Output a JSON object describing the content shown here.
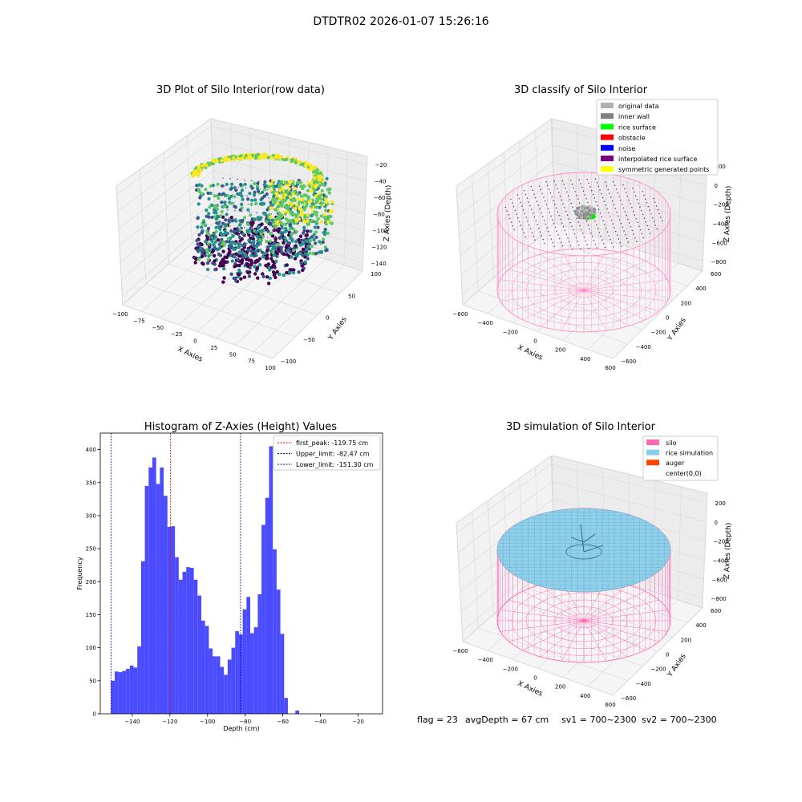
{
  "figure": {
    "suptitle": "DTDTR02 2026-01-07 15:26:16",
    "footer": {
      "flag": "flag = 23",
      "avg_depth": "avgDepth = 67 cm",
      "sv1": "sv1 = 700~2300",
      "sv2": "sv2 = 700~2300"
    }
  },
  "chart_data": [
    {
      "id": "raw",
      "type": "scatter",
      "title": "3D Plot of Silo Interior(row data)",
      "xlabel": "X Axies",
      "ylabel": "Y Axies",
      "zlabel": "Z Axies (Depth)",
      "x_ticks": [
        "−100",
        "−75",
        "−50",
        "−25",
        "0",
        "25",
        "50",
        "75",
        "100"
      ],
      "y_ticks": [
        "−100",
        "−50",
        "0",
        "50",
        "100"
      ],
      "z_ticks": [
        "−20",
        "−40",
        "−60",
        "−80",
        "−100",
        "−120",
        "−140"
      ],
      "xlim": [
        -100,
        100
      ],
      "ylim": [
        -100,
        100
      ],
      "zlim": [
        -150,
        -10
      ],
      "colormap": [
        "#440154",
        "#3b528b",
        "#21918c",
        "#5ec962",
        "#fde725"
      ]
    },
    {
      "id": "classify",
      "type": "scatter",
      "title": "3D classify of Silo Interior",
      "xlabel": "X Axies",
      "ylabel": "Y Axies",
      "zlabel": "Z Axies (Depth)",
      "x_ticks": [
        "−600",
        "−400",
        "−200",
        "0",
        "200",
        "400",
        "600"
      ],
      "y_ticks": [
        "−600",
        "−400",
        "−200",
        "0",
        "200",
        "400",
        "600"
      ],
      "z_ticks": [
        "200",
        "0",
        "−200",
        "−400",
        "−600",
        "−800"
      ],
      "legend_position": "top-right",
      "legend": [
        {
          "label": "original data",
          "color": "#b0b0b0"
        },
        {
          "label": "inner wall",
          "color": "#808080"
        },
        {
          "label": "rice surface",
          "color": "#00ff00"
        },
        {
          "label": "obstacle",
          "color": "#ff0000"
        },
        {
          "label": "noise",
          "color": "#0000ff"
        },
        {
          "label": "interpolated rice surface",
          "color": "#800080"
        },
        {
          "label": "symmetric generated points",
          "color": "#ffff00"
        }
      ],
      "silo_color": "#ff8fc8"
    },
    {
      "id": "histogram",
      "type": "bar",
      "title": "Histogram of Z-Axies (Height) Values",
      "xlabel": "Depth (cm)",
      "ylabel": "Frequency",
      "xlim": [
        -157,
        -7
      ],
      "ylim": [
        0,
        425
      ],
      "x_ticks": [
        -140,
        -120,
        -100,
        -80,
        -60,
        -40,
        -20
      ],
      "x_tick_labels": [
        "−140",
        "−120",
        "−100",
        "−80",
        "−60",
        "−40",
        "−20"
      ],
      "y_ticks": [
        0,
        50,
        100,
        150,
        200,
        250,
        300,
        350,
        400
      ],
      "bar_color": "#4b4bff",
      "bin_start": -151.3,
      "bin_width": 2.0,
      "values": [
        50,
        64,
        63,
        65,
        68,
        73,
        70,
        102,
        231,
        345,
        373,
        388,
        348,
        373,
        330,
        283,
        284,
        237,
        203,
        215,
        222,
        221,
        203,
        179,
        141,
        133,
        99,
        87,
        87,
        71,
        59,
        82,
        100,
        125,
        120,
        158,
        177,
        122,
        131,
        181,
        286,
        327,
        405,
        249,
        188,
        121,
        24,
        0,
        0,
        5,
        0
      ],
      "lines": [
        {
          "label": "first_peak: -119.75 cm",
          "x": -119.75,
          "color": "#ff0000"
        },
        {
          "label": "Upper_limit: -82.47 cm",
          "x": -82.47,
          "color": "#0000aa"
        },
        {
          "label": "Lower_limit: -151.30 cm",
          "x": -151.3,
          "color": "#0000aa"
        }
      ],
      "legend_position": "top-right"
    },
    {
      "id": "simulation",
      "type": "scatter",
      "title": "3D simulation of Silo Interior",
      "xlabel": "X Axies",
      "ylabel": "Y Axies",
      "zlabel": "Z Axies (Depth)",
      "x_ticks": [
        "−600",
        "−400",
        "−200",
        "0",
        "200",
        "400",
        "600"
      ],
      "y_ticks": [
        "−600",
        "−400",
        "−200",
        "0",
        "200",
        "400",
        "600"
      ],
      "z_ticks": [
        "200",
        "0",
        "−200",
        "−400",
        "−600",
        "−800"
      ],
      "legend_position": "top-right",
      "legend": [
        {
          "label": "silo",
          "color": "#ff69b4"
        },
        {
          "label": "rice simulation",
          "color": "#87ceeb"
        },
        {
          "label": "auger",
          "color": "#ff4500"
        },
        {
          "label": "center(0,0)",
          "color": "#ffffff"
        }
      ]
    }
  ]
}
